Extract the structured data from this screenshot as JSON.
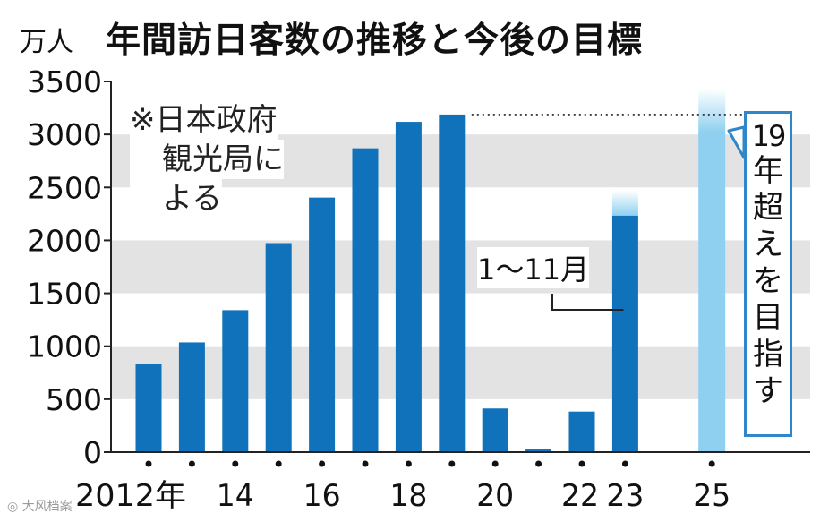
{
  "title": "年間訪日客数の推移と今後の目標",
  "source_note": [
    "※日本政府",
    "観光局に",
    "よる"
  ],
  "partial_note": "1～11月",
  "target_note": {
    "number": "19",
    "text": [
      "年",
      "超",
      "え",
      "を",
      "目",
      "指",
      "す"
    ]
  },
  "watermark": "大风档案",
  "colors": {
    "bar": "#0f72ba",
    "target_bar": "#8fd0f0",
    "band": "#e3e3e3",
    "callout": "#2f86c9"
  },
  "chart_data": {
    "type": "bar",
    "title": "年間訪日客数の推移と今後の目標",
    "ylabel": "万人",
    "ylim": [
      0,
      3500
    ],
    "yticks": [
      0,
      500,
      1000,
      1500,
      2000,
      2500,
      3000,
      3500
    ],
    "x_tick_labels": [
      {
        "year": 2012,
        "label": "2012年"
      },
      {
        "year": 2014,
        "label": "14"
      },
      {
        "year": 2016,
        "label": "16"
      },
      {
        "year": 2018,
        "label": "18"
      },
      {
        "year": 2020,
        "label": "20"
      },
      {
        "year": 2022,
        "label": "22"
      },
      {
        "year": 2023,
        "label": "23"
      },
      {
        "year": 2025,
        "label": "25"
      }
    ],
    "x_dot_years": [
      2012,
      2013,
      2014,
      2015,
      2016,
      2017,
      2018,
      2019,
      2020,
      2021,
      2022,
      2023,
      2025
    ],
    "values": [
      {
        "year": 2012,
        "value": 836
      },
      {
        "year": 2013,
        "value": 1036
      },
      {
        "year": 2014,
        "value": 1341
      },
      {
        "year": 2015,
        "value": 1974
      },
      {
        "year": 2016,
        "value": 2404
      },
      {
        "year": 2017,
        "value": 2869
      },
      {
        "year": 2018,
        "value": 3119
      },
      {
        "year": 2019,
        "value": 3188
      },
      {
        "year": 2020,
        "value": 412
      },
      {
        "year": 2021,
        "value": 25
      },
      {
        "year": 2022,
        "value": 383
      },
      {
        "year": 2023,
        "value": 2233,
        "note": "1～11月"
      }
    ],
    "target": {
      "year": 2025,
      "value": 3188,
      "label": "19年超えを目指す"
    },
    "grid": "alternating-bands"
  }
}
